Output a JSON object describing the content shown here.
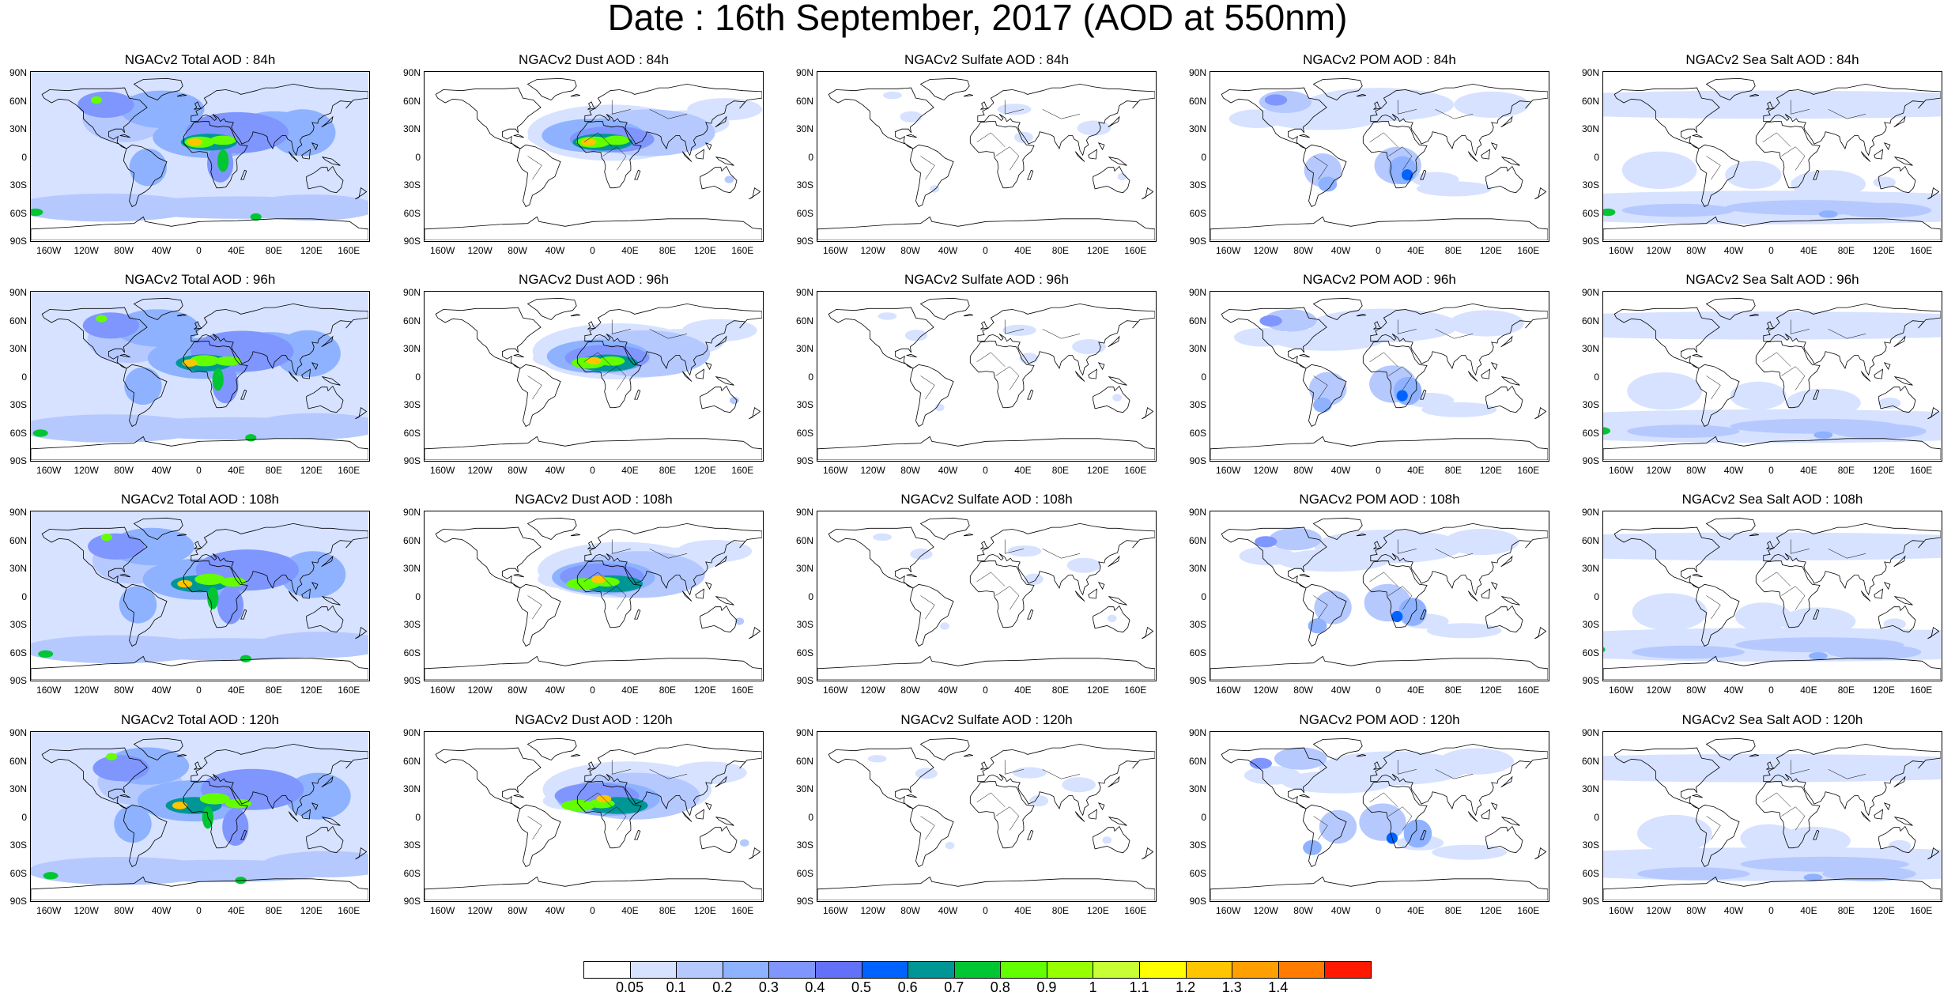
{
  "title": "Date : 16th September, 2017 (AOD at 550nm)",
  "lat_labels": [
    "90N",
    "60N",
    "30N",
    "0",
    "30S",
    "60S",
    "90S"
  ],
  "lon_labels": [
    "160W",
    "120W",
    "80W",
    "40W",
    "0",
    "40E",
    "80E",
    "120E",
    "160E"
  ],
  "panels": [
    [
      "NGACv2 Total AOD : 84h",
      "NGACv2 Dust AOD : 84h",
      "NGACv2 Sulfate AOD : 84h",
      "NGACv2 POM AOD : 84h",
      "NGACv2 Sea Salt AOD : 84h"
    ],
    [
      "NGACv2 Total AOD : 96h",
      "NGACv2 Dust AOD : 96h",
      "NGACv2 Sulfate AOD : 96h",
      "NGACv2 POM AOD : 96h",
      "NGACv2 Sea Salt AOD : 96h"
    ],
    [
      "NGACv2 Total AOD : 108h",
      "NGACv2 Dust AOD : 108h",
      "NGACv2 Sulfate AOD : 108h",
      "NGACv2 POM AOD : 108h",
      "NGACv2 Sea Salt AOD : 108h"
    ],
    [
      "NGACv2 Total AOD : 120h",
      "NGACv2 Dust AOD : 120h",
      "NGACv2 Sulfate AOD : 120h",
      "NGACv2 POM AOD : 120h",
      "NGACv2 Sea Salt  AOD : 120h"
    ]
  ],
  "species": [
    "total",
    "dust",
    "sulfate",
    "pom",
    "seasalt"
  ],
  "colorbar": {
    "labels": [
      "0.05",
      "0.1",
      "0.2",
      "0.3",
      "0.4",
      "0.5",
      "0.6",
      "0.7",
      "0.8",
      "0.9",
      "1",
      "1.1",
      "1.2",
      "1.3",
      "1.4"
    ],
    "colors": [
      "#ffffff",
      "#d6e2ff",
      "#b5c9ff",
      "#8eb2ff",
      "#7f96ff",
      "#6370f8",
      "#0063ff",
      "#009696",
      "#00c633",
      "#63ff00",
      "#96ff00",
      "#c6ff33",
      "#ffff00",
      "#ffc600",
      "#ffa000",
      "#ff7c00",
      "#ff1900"
    ]
  }
}
